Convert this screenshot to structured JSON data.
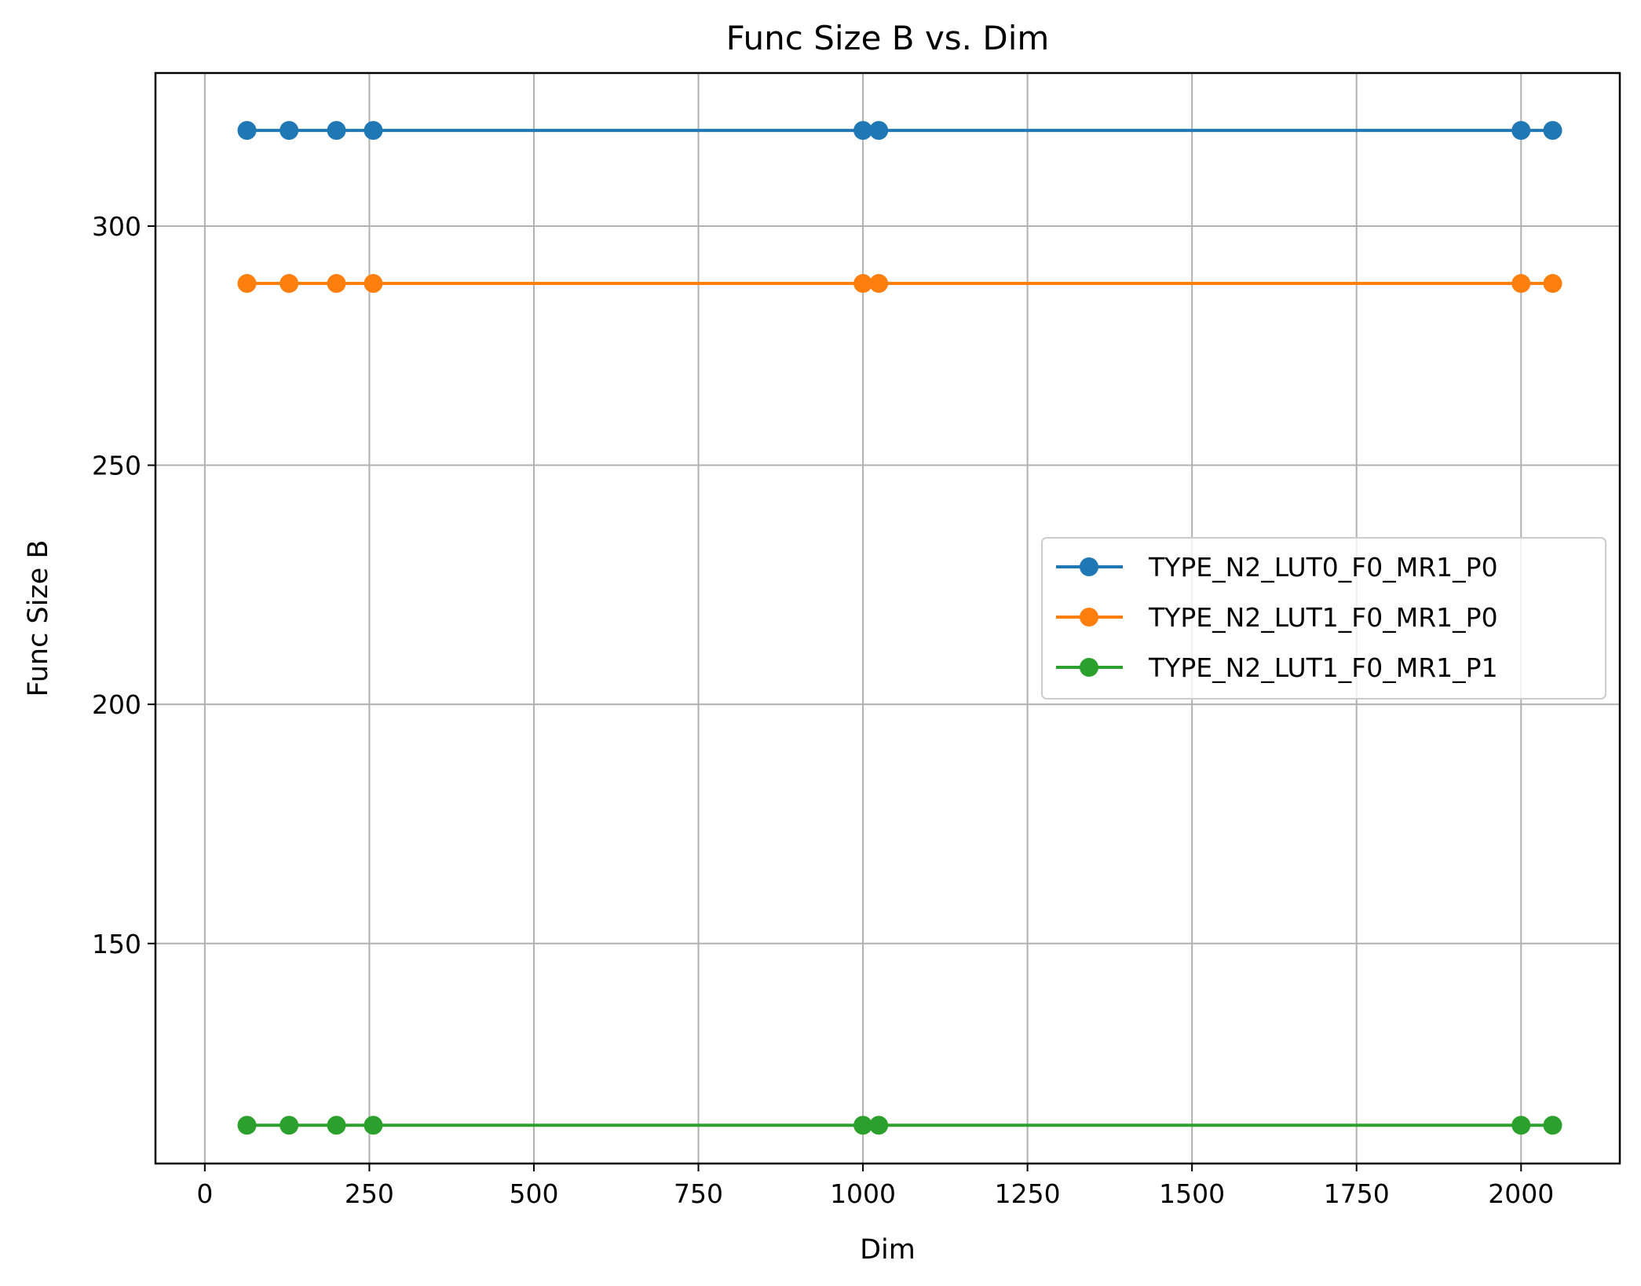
{
  "chart_data": {
    "type": "line",
    "title": "Func Size B vs. Dim",
    "xlabel": "Dim",
    "ylabel": "Func Size B",
    "xlim": [
      -75,
      2150
    ],
    "ylim": [
      104,
      332
    ],
    "xticks": [
      0,
      250,
      500,
      750,
      1000,
      1250,
      1500,
      1750,
      2000
    ],
    "yticks": [
      150,
      200,
      250,
      300
    ],
    "grid": true,
    "legend_position": "center-right",
    "x": [
      64,
      128,
      200,
      256,
      1000,
      1024,
      2000,
      2048
    ],
    "series": [
      {
        "name": "TYPE_N2_LUT0_F0_MR1_P0",
        "color": "#1f77b4",
        "values": [
          320,
          320,
          320,
          320,
          320,
          320,
          320,
          320
        ]
      },
      {
        "name": "TYPE_N2_LUT1_F0_MR1_P0",
        "color": "#ff7f0e",
        "values": [
          288,
          288,
          288,
          288,
          288,
          288,
          288,
          288
        ]
      },
      {
        "name": "TYPE_N2_LUT1_F0_MR1_P1",
        "color": "#2ca02c",
        "values": [
          112,
          112,
          112,
          112,
          112,
          112,
          112,
          112
        ]
      }
    ]
  }
}
